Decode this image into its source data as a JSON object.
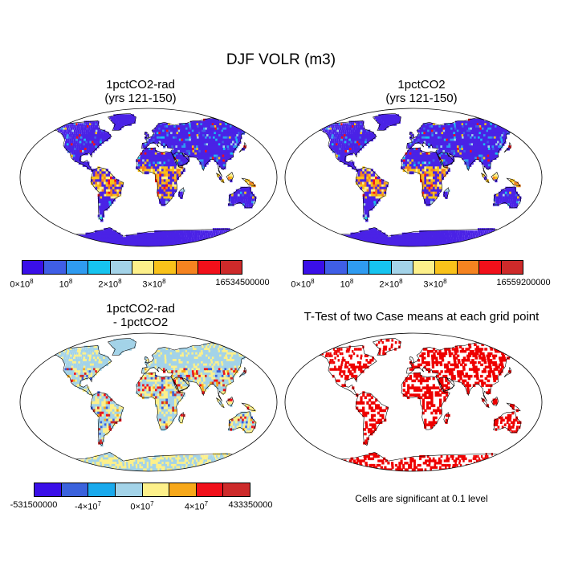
{
  "main_title": "DJF VOLR (m3)",
  "colors": {
    "scale10": [
      "#3a0fe8",
      "#3f5ee6",
      "#2f9bf0",
      "#16c4ef",
      "#a3d3e8",
      "#fdf08a",
      "#f9c21a",
      "#f58320",
      "#f1101a",
      "#cd2a2a"
    ],
    "land_base_full": "#4a22e6",
    "diff_scale": [
      "#3a0fe8",
      "#3b62dc",
      "#19a9ec",
      "#a3d3e8",
      "#fdf08a",
      "#f7a81a",
      "#f1101a",
      "#cd2a2a"
    ],
    "sig_red": "#ee0000",
    "ocean": "#ffffff",
    "coast": "#000000"
  },
  "panels": [
    {
      "id": "top-left",
      "title_line1": "1pctCO2-rad",
      "title_line2": "(yrs 121-150)",
      "colorbar": {
        "labels": [
          {
            "html": "0×10<sup>8</sup>",
            "pos": 0.0
          },
          {
            "html": "10<sup>8</sup>",
            "pos": 0.2
          },
          {
            "html": "2×10<sup>8</sup>",
            "pos": 0.4
          },
          {
            "html": "3×10<sup>8</sup>",
            "pos": 0.6
          },
          {
            "html": "16534500000",
            "pos": 1.0
          }
        ]
      }
    },
    {
      "id": "top-right",
      "title_line1": "1pctCO2",
      "title_line2": "(yrs 121-150)",
      "colorbar": {
        "labels": [
          {
            "html": "0×10<sup>8</sup>",
            "pos": 0.0
          },
          {
            "html": "10<sup>8</sup>",
            "pos": 0.2
          },
          {
            "html": "2×10<sup>8</sup>",
            "pos": 0.4
          },
          {
            "html": "3×10<sup>8</sup>",
            "pos": 0.6
          },
          {
            "html": "16559200000",
            "pos": 1.0
          }
        ]
      }
    },
    {
      "id": "bottom-left",
      "title_line1": "1pctCO2-rad",
      "title_line2": "- 1pctCO2",
      "colorbar": {
        "labels": [
          {
            "html": "-531500000",
            "pos": 0.0
          },
          {
            "html": "-4×10<sup>7</sup>",
            "pos": 0.25
          },
          {
            "html": "0×10<sup>7</sup>",
            "pos": 0.5
          },
          {
            "html": "4×10<sup>7</sup>",
            "pos": 0.75
          },
          {
            "html": "433350000",
            "pos": 1.0
          }
        ]
      }
    },
    {
      "id": "bottom-right",
      "title_line1": "T-Test of two Case means at each grid point",
      "note": "Cells are significant at 0.1 level"
    }
  ]
}
